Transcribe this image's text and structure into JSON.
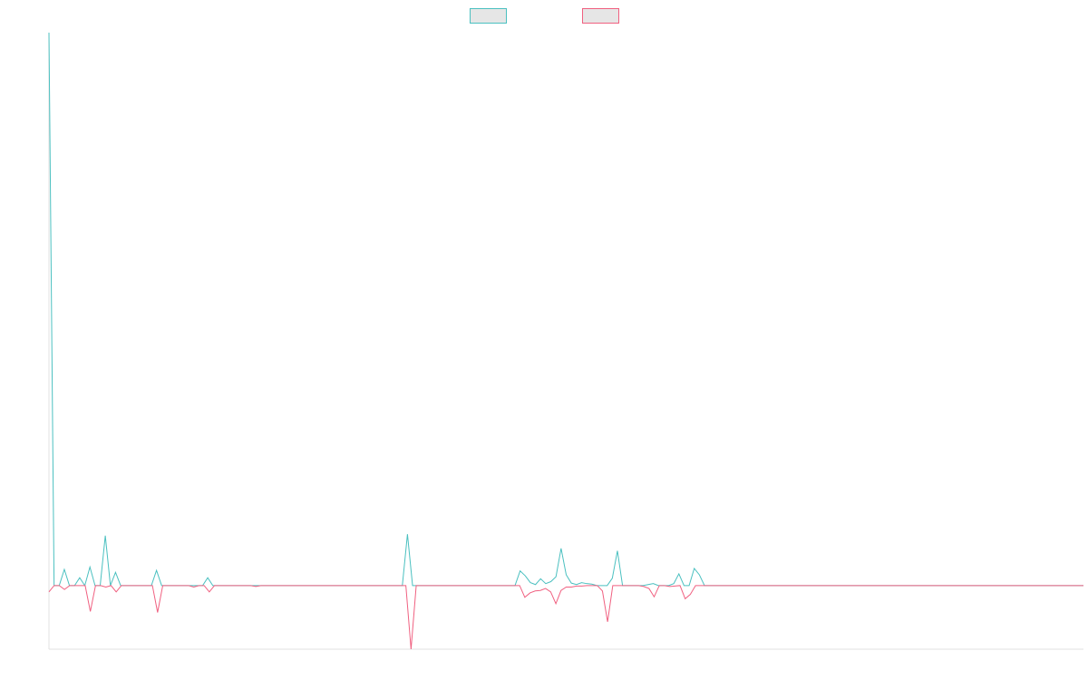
{
  "chart_data": {
    "type": "line",
    "title": "",
    "xlabel": "",
    "ylabel": "",
    "grid": false,
    "legend_position": "top-center",
    "ylim": [
      -13,
      113
    ],
    "series": [
      {
        "color": "#4bc0c0",
        "values": [
          113,
          0,
          0,
          3.3,
          0,
          0,
          1.6,
          0,
          3.8,
          0,
          0,
          10.2,
          0,
          2.7,
          0,
          0,
          0,
          0,
          0,
          0,
          0,
          3.1,
          0,
          0,
          0,
          0,
          0,
          0,
          0,
          0,
          0,
          1.6,
          0,
          0,
          0,
          0,
          0,
          0,
          0,
          0,
          0,
          0,
          0,
          0,
          0,
          0,
          0,
          0,
          0,
          0,
          0,
          0,
          0,
          0,
          0,
          0,
          0,
          0,
          0,
          0,
          0,
          0,
          0,
          0,
          0,
          0,
          0,
          0,
          0,
          0,
          10.5,
          0,
          0,
          0,
          0,
          0,
          0,
          0,
          0,
          0,
          0,
          0,
          0,
          0,
          0,
          0,
          0,
          0,
          0,
          0,
          0,
          0,
          3.0,
          2.0,
          0.6,
          0.2,
          1.4,
          0.4,
          0.8,
          1.8,
          7.6,
          2.2,
          0.5,
          0.2,
          0.6,
          0.4,
          0.3,
          0,
          0,
          0,
          1.5,
          7.1,
          0,
          0,
          0,
          0,
          0,
          0.2,
          0.4,
          0,
          0,
          0,
          0.4,
          2.4,
          0,
          0,
          3.5,
          2.2,
          0,
          0,
          0,
          0,
          0,
          0,
          0,
          0,
          0,
          0,
          0,
          0,
          0,
          0,
          0,
          0,
          0,
          0,
          0,
          0,
          0,
          0,
          0,
          0,
          0,
          0,
          0,
          0,
          0,
          0,
          0,
          0,
          0,
          0,
          0,
          0,
          0,
          0,
          0,
          0,
          0,
          0,
          0,
          0,
          0,
          0,
          0,
          0,
          0,
          0,
          0,
          0,
          0,
          0,
          0,
          0,
          0,
          0,
          0,
          0,
          0,
          0,
          0,
          0,
          0,
          0,
          0,
          0,
          0,
          0,
          0,
          0,
          0,
          0,
          0
        ]
      },
      {
        "color": "#f06080",
        "values": [
          -1.3,
          0,
          0,
          -0.8,
          0,
          0,
          0,
          0,
          -5.3,
          0,
          0,
          -0.3,
          0,
          -1.3,
          0,
          0,
          0,
          0,
          0,
          0,
          0,
          -5.5,
          0,
          0,
          0,
          0,
          0,
          0,
          -0.3,
          0,
          0,
          -1.3,
          0,
          0,
          0,
          0,
          0,
          0,
          0,
          0,
          -0.2,
          0,
          0,
          0,
          0,
          0,
          0,
          0,
          0,
          0,
          0,
          0,
          0,
          0,
          0,
          0,
          0,
          0,
          0,
          0,
          0,
          0,
          0,
          0,
          0,
          0,
          0,
          0,
          0,
          0,
          -13,
          0,
          0,
          0,
          0,
          0,
          0,
          0,
          0,
          0,
          0,
          0,
          0,
          0,
          0,
          0,
          0,
          0,
          0,
          0,
          0,
          0,
          -2.4,
          -1.5,
          -1.1,
          -1.0,
          -0.6,
          -1.3,
          -3.7,
          -1.0,
          -0.3,
          -0.3,
          -0.1,
          -0.1,
          0,
          0,
          0,
          -1.1,
          -7.4,
          0,
          0,
          0,
          0,
          0,
          0,
          -0.2,
          -0.6,
          -2.3,
          0,
          0,
          -0.2,
          -0.1,
          0,
          -2.7,
          -1.8,
          0,
          0,
          0,
          0,
          0,
          0,
          0,
          0,
          0,
          0,
          0,
          0,
          0,
          0,
          0,
          0,
          0,
          0,
          0,
          0,
          0,
          0,
          0,
          0,
          0,
          0,
          0,
          0,
          0,
          0,
          0,
          0,
          0,
          0,
          0,
          0,
          0,
          0,
          0,
          0,
          0,
          0,
          0,
          0,
          0,
          0,
          0,
          0,
          0,
          0,
          0,
          0,
          0,
          0,
          0,
          0,
          0,
          0,
          0,
          0,
          0,
          0,
          0,
          0,
          0,
          0,
          0,
          0,
          0,
          0,
          0,
          0,
          0,
          0,
          0,
          0
        ]
      }
    ]
  }
}
